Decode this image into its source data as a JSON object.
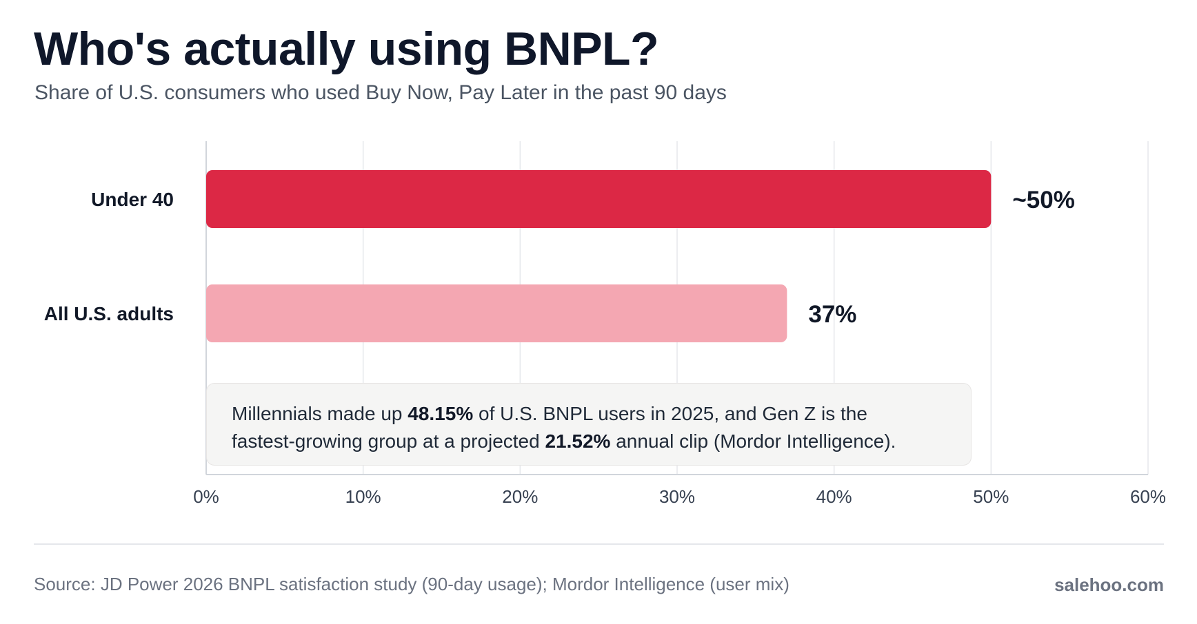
{
  "title": "Who's actually using BNPL?",
  "subtitle": "Share of U.S. consumers who used Buy Now, Pay Later in the past 90 days",
  "chart_data": {
    "type": "bar",
    "orientation": "horizontal",
    "categories": [
      "Under 40",
      "All U.S. adults"
    ],
    "values": [
      50,
      37
    ],
    "value_labels": [
      "~50%",
      "37%"
    ],
    "colors": [
      "#dc2845",
      "#f4a7b2"
    ],
    "xlim": [
      0,
      60
    ],
    "x_ticks": [
      0,
      10,
      20,
      30,
      40,
      50,
      60
    ],
    "x_tick_labels": [
      "0%",
      "10%",
      "20%",
      "30%",
      "40%",
      "50%",
      "60%"
    ],
    "grid": true
  },
  "note": {
    "line1_pre": "Millennials made up ",
    "line1_bold": "48.15%",
    "line1_post": " of U.S. BNPL users in 2025, and Gen Z is the",
    "line2_pre": "fastest-growing group at a projected ",
    "line2_bold": "21.52%",
    "line2_post": " annual clip (Mordor Intelligence)."
  },
  "footer": {
    "source": "Source: JD Power 2026 BNPL satisfaction study (90-day usage); Mordor Intelligence (user mix)",
    "brand": "salehoo.com"
  }
}
